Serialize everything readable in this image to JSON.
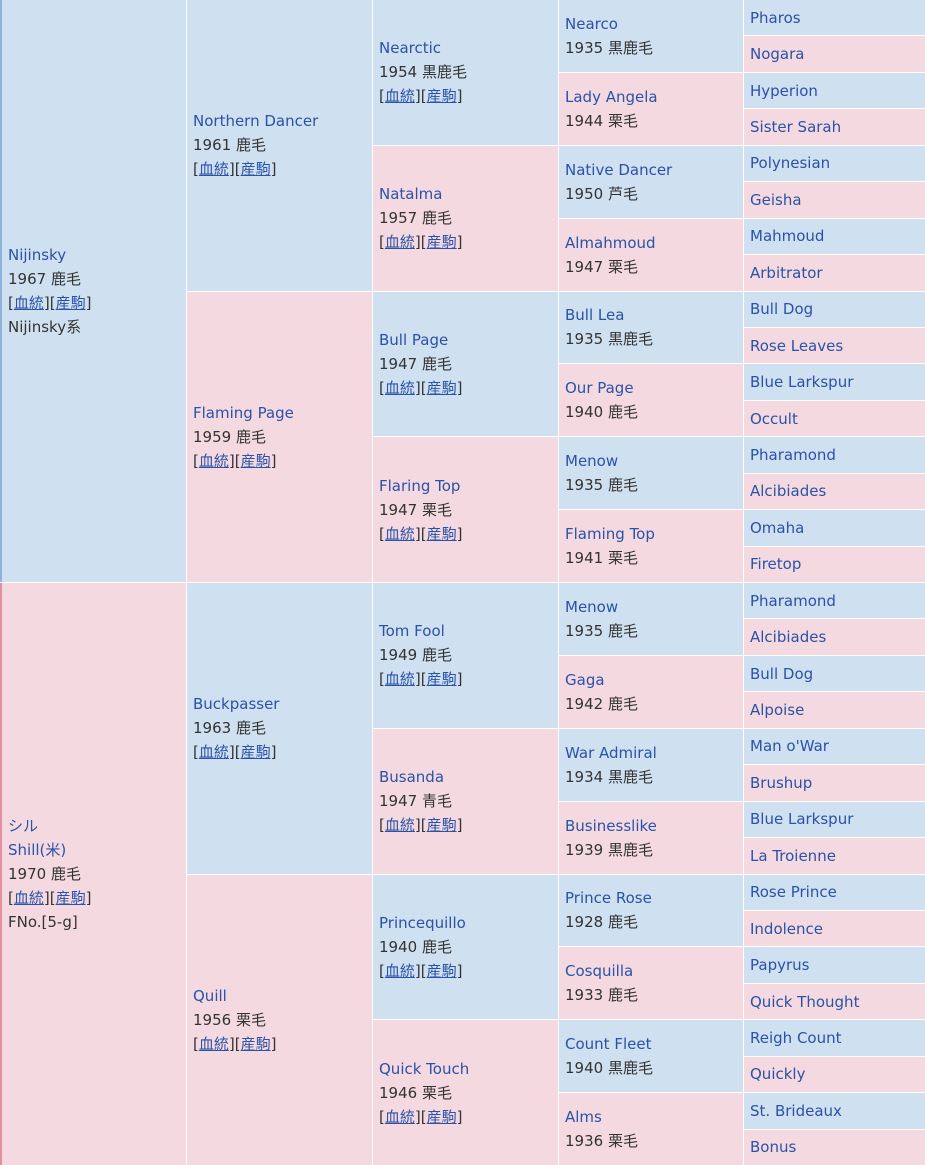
{
  "generations": [
    [
      {
        "name": [
          "Nijinsky"
        ],
        "info": "1967 鹿毛",
        "links": [
          "[",
          "血統",
          "][",
          "産駒",
          "]"
        ],
        "note": "Nijinsky系"
      },
      {
        "name": [
          "シル",
          "Shill(米)"
        ],
        "info": "1970 鹿毛",
        "links": [
          "[",
          "血統",
          "][",
          "産駒",
          "]"
        ],
        "note": "FNo.[5-g]"
      }
    ],
    [
      {
        "name": [
          "Northern Dancer"
        ],
        "info": "1961 鹿毛",
        "links": [
          "[",
          "血統",
          "][",
          "産駒",
          "]"
        ]
      },
      {
        "name": [
          "Flaming Page"
        ],
        "info": "1959 鹿毛",
        "links": [
          "[",
          "血統",
          "][",
          "産駒",
          "]"
        ]
      },
      {
        "name": [
          "Buckpasser"
        ],
        "info": "1963 鹿毛",
        "links": [
          "[",
          "血統",
          "][",
          "産駒",
          "]"
        ]
      },
      {
        "name": [
          "Quill"
        ],
        "info": "1956 栗毛",
        "links": [
          "[",
          "血統",
          "][",
          "産駒",
          "]"
        ]
      }
    ],
    [
      {
        "name": [
          "Nearctic"
        ],
        "info": "1954 黒鹿毛",
        "links": [
          "[",
          "血統",
          "][",
          "産駒",
          "]"
        ]
      },
      {
        "name": [
          "Natalma"
        ],
        "info": "1957 鹿毛",
        "links": [
          "[",
          "血統",
          "][",
          "産駒",
          "]"
        ]
      },
      {
        "name": [
          "Bull Page"
        ],
        "info": "1947 鹿毛",
        "links": [
          "[",
          "血統",
          "][",
          "産駒",
          "]"
        ]
      },
      {
        "name": [
          "Flaring Top"
        ],
        "info": "1947 栗毛",
        "links": [
          "[",
          "血統",
          "][",
          "産駒",
          "]"
        ]
      },
      {
        "name": [
          "Tom Fool"
        ],
        "info": "1949 鹿毛",
        "links": [
          "[",
          "血統",
          "][",
          "産駒",
          "]"
        ]
      },
      {
        "name": [
          "Busanda"
        ],
        "info": "1947 青毛",
        "links": [
          "[",
          "血統",
          "][",
          "産駒",
          "]"
        ]
      },
      {
        "name": [
          "Princequillo"
        ],
        "info": "1940 鹿毛",
        "links": [
          "[",
          "血統",
          "][",
          "産駒",
          "]"
        ]
      },
      {
        "name": [
          "Quick Touch"
        ],
        "info": "1946 栗毛",
        "links": [
          "[",
          "血統",
          "][",
          "産駒",
          "]"
        ]
      }
    ],
    [
      {
        "name": [
          "Nearco"
        ],
        "info": "1935 黒鹿毛"
      },
      {
        "name": [
          "Lady Angela"
        ],
        "info": "1944 栗毛"
      },
      {
        "name": [
          "Native Dancer"
        ],
        "info": "1950 芦毛"
      },
      {
        "name": [
          "Almahmoud"
        ],
        "info": "1947 栗毛"
      },
      {
        "name": [
          "Bull Lea"
        ],
        "info": "1935 黒鹿毛"
      },
      {
        "name": [
          "Our Page"
        ],
        "info": "1940 鹿毛"
      },
      {
        "name": [
          "Menow"
        ],
        "info": "1935 鹿毛"
      },
      {
        "name": [
          "Flaming Top"
        ],
        "info": "1941 栗毛"
      },
      {
        "name": [
          "Menow"
        ],
        "info": "1935 鹿毛"
      },
      {
        "name": [
          "Gaga"
        ],
        "info": "1942 鹿毛"
      },
      {
        "name": [
          "War Admiral"
        ],
        "info": "1934 黒鹿毛"
      },
      {
        "name": [
          "Businesslike"
        ],
        "info": "1939 黒鹿毛"
      },
      {
        "name": [
          "Prince Rose"
        ],
        "info": "1928 鹿毛"
      },
      {
        "name": [
          "Cosquilla"
        ],
        "info": "1933 鹿毛"
      },
      {
        "name": [
          "Count Fleet"
        ],
        "info": "1940 黒鹿毛"
      },
      {
        "name": [
          "Alms"
        ],
        "info": "1936 栗毛"
      }
    ],
    [
      {
        "name": [
          "Pharos"
        ]
      },
      {
        "name": [
          "Nogara"
        ]
      },
      {
        "name": [
          "Hyperion"
        ]
      },
      {
        "name": [
          "Sister Sarah"
        ]
      },
      {
        "name": [
          "Polynesian"
        ]
      },
      {
        "name": [
          "Geisha"
        ]
      },
      {
        "name": [
          "Mahmoud"
        ]
      },
      {
        "name": [
          "Arbitrator"
        ]
      },
      {
        "name": [
          "Bull Dog"
        ]
      },
      {
        "name": [
          "Rose Leaves"
        ]
      },
      {
        "name": [
          "Blue Larkspur"
        ]
      },
      {
        "name": [
          "Occult"
        ]
      },
      {
        "name": [
          "Pharamond"
        ]
      },
      {
        "name": [
          "Alcibiades"
        ]
      },
      {
        "name": [
          "Omaha"
        ]
      },
      {
        "name": [
          "Firetop"
        ]
      },
      {
        "name": [
          "Pharamond"
        ]
      },
      {
        "name": [
          "Alcibiades"
        ]
      },
      {
        "name": [
          "Bull Dog"
        ]
      },
      {
        "name": [
          "Alpoise"
        ]
      },
      {
        "name": [
          "Man o'War"
        ]
      },
      {
        "name": [
          "Brushup"
        ]
      },
      {
        "name": [
          "Blue Larkspur"
        ]
      },
      {
        "name": [
          "La Troienne"
        ]
      },
      {
        "name": [
          "Rose Prince"
        ]
      },
      {
        "name": [
          "Indolence"
        ]
      },
      {
        "name": [
          "Papyrus"
        ]
      },
      {
        "name": [
          "Quick Thought"
        ]
      },
      {
        "name": [
          "Reigh Count"
        ]
      },
      {
        "name": [
          "Quickly"
        ]
      },
      {
        "name": [
          "St. Brideaux"
        ]
      },
      {
        "name": [
          "Bonus"
        ]
      }
    ]
  ]
}
